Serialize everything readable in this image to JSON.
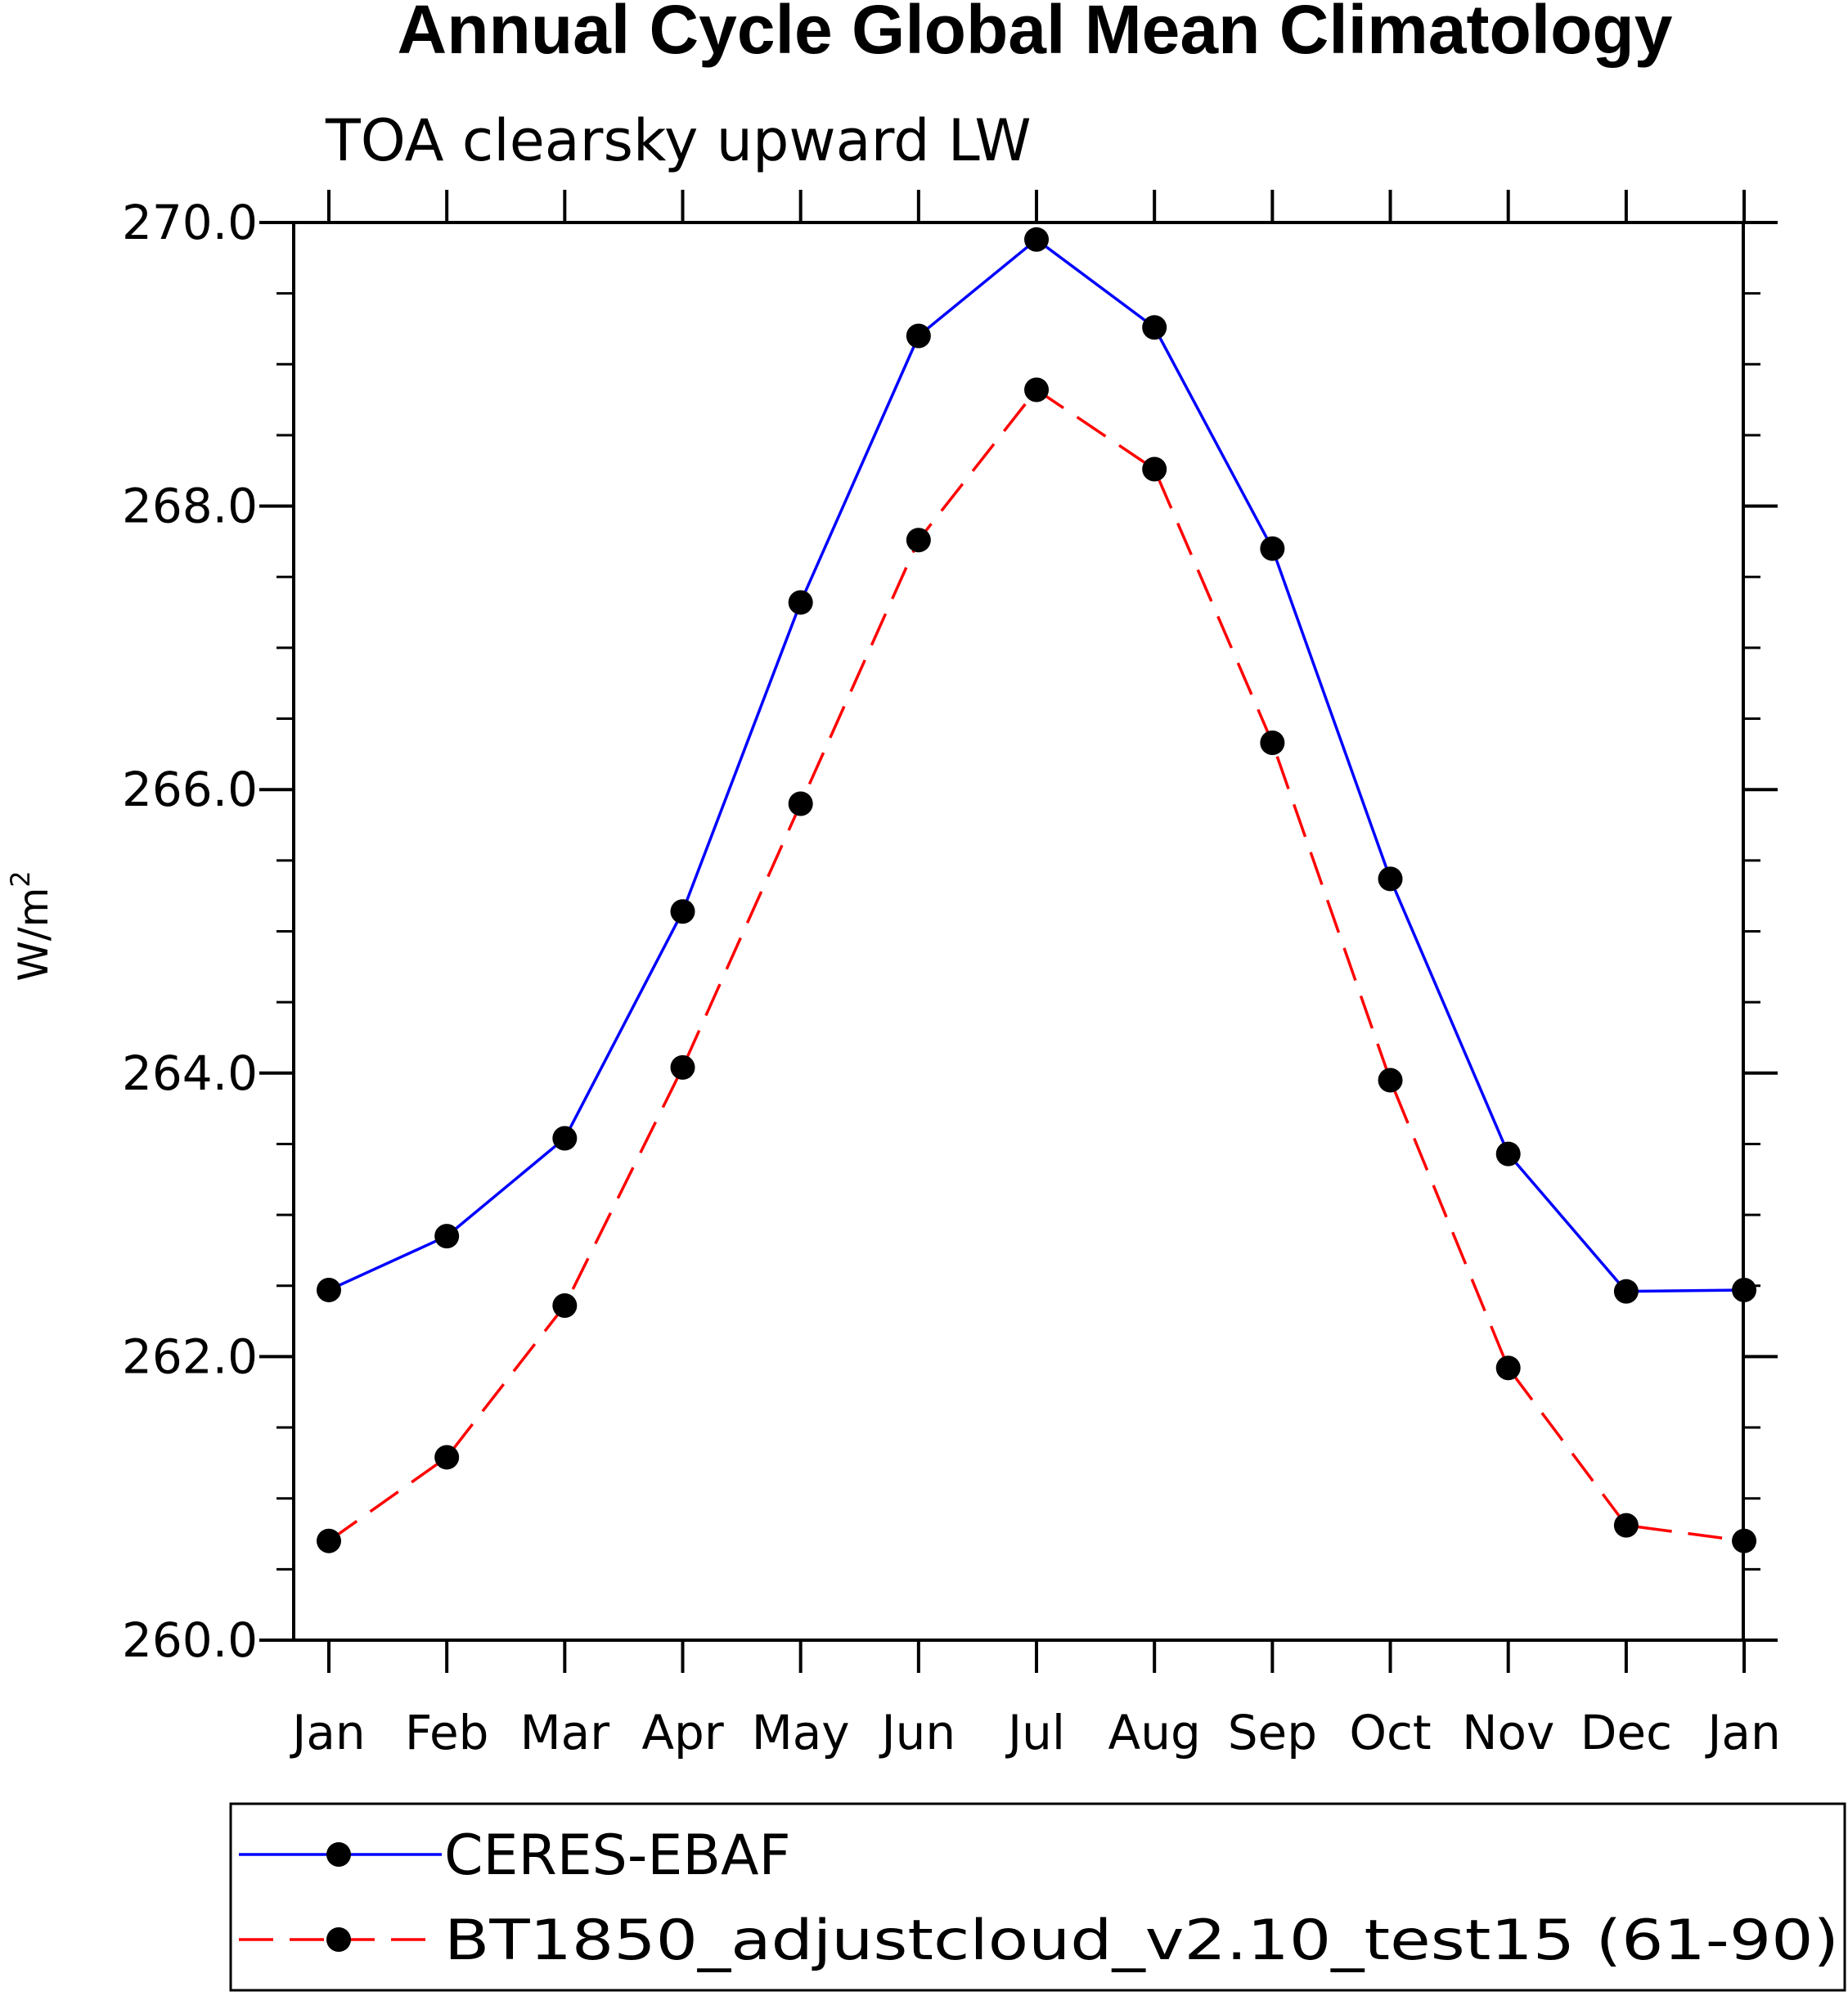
{
  "chart_data": {
    "type": "line",
    "title": "Annual Cycle Global Mean Climatology",
    "subtitle": "TOA clearsky upward LW",
    "ylabel": "W/m",
    "ylabel_sup": "2",
    "xlabel": "",
    "categories": [
      "Jan",
      "Feb",
      "Mar",
      "Apr",
      "May",
      "Jun",
      "Jul",
      "Aug",
      "Sep",
      "Oct",
      "Nov",
      "Dec",
      "Jan"
    ],
    "ylim": [
      260.0,
      270.0
    ],
    "yticks": [
      "260.0",
      "262.0",
      "264.0",
      "266.0",
      "268.0",
      "270.0"
    ],
    "grid": false,
    "legend_position": "bottom",
    "series": [
      {
        "name": "CERES-EBAF",
        "color": "#0000ff",
        "dash": "solid",
        "values": [
          262.47,
          262.85,
          263.54,
          265.14,
          267.32,
          269.2,
          269.88,
          269.26,
          267.7,
          265.37,
          263.43,
          262.46,
          262.47
        ]
      },
      {
        "name": "BT1850_adjustcloud_v2.10_test15 (61-90)",
        "color": "#ff0000",
        "dash": "dashed",
        "values": [
          260.7,
          261.29,
          262.36,
          264.04,
          265.9,
          267.76,
          268.82,
          268.26,
          266.33,
          263.95,
          261.92,
          260.81,
          260.7
        ]
      }
    ]
  }
}
